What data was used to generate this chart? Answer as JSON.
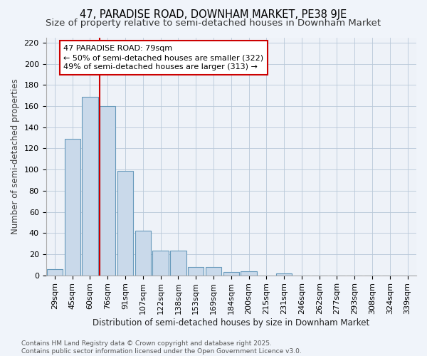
{
  "title": "47, PARADISE ROAD, DOWNHAM MARKET, PE38 9JE",
  "subtitle": "Size of property relative to semi-detached houses in Downham Market",
  "xlabel": "Distribution of semi-detached houses by size in Downham Market",
  "ylabel": "Number of semi-detached properties",
  "categories": [
    "29sqm",
    "45sqm",
    "60sqm",
    "76sqm",
    "91sqm",
    "107sqm",
    "122sqm",
    "138sqm",
    "153sqm",
    "169sqm",
    "184sqm",
    "200sqm",
    "215sqm",
    "231sqm",
    "246sqm",
    "262sqm",
    "277sqm",
    "293sqm",
    "308sqm",
    "324sqm",
    "339sqm"
  ],
  "values": [
    6,
    129,
    169,
    160,
    99,
    42,
    23,
    23,
    8,
    8,
    3,
    4,
    0,
    2,
    0,
    0,
    0,
    0,
    0,
    0,
    0
  ],
  "bar_color": "#c9d9ea",
  "bar_edge_color": "#6699bb",
  "vline_x_index": 3,
  "vline_color": "#cc0000",
  "annotation_line1": "47 PARADISE ROAD: 79sqm",
  "annotation_line2": "← 50% of semi-detached houses are smaller (322)",
  "annotation_line3": "49% of semi-detached houses are larger (313) →",
  "annotation_box_facecolor": "#ffffff",
  "annotation_box_edgecolor": "#cc0000",
  "background_color": "#f0f4fa",
  "plot_bg_color": "#eef2f8",
  "ylim": [
    0,
    225
  ],
  "yticks": [
    0,
    20,
    40,
    60,
    80,
    100,
    120,
    140,
    160,
    180,
    200,
    220
  ],
  "footnote": "Contains HM Land Registry data © Crown copyright and database right 2025.\nContains public sector information licensed under the Open Government Licence v3.0.",
  "title_fontsize": 10.5,
  "subtitle_fontsize": 9.5,
  "axis_label_fontsize": 8.5,
  "tick_fontsize": 8,
  "footnote_fontsize": 6.5,
  "annotation_fontsize": 8
}
